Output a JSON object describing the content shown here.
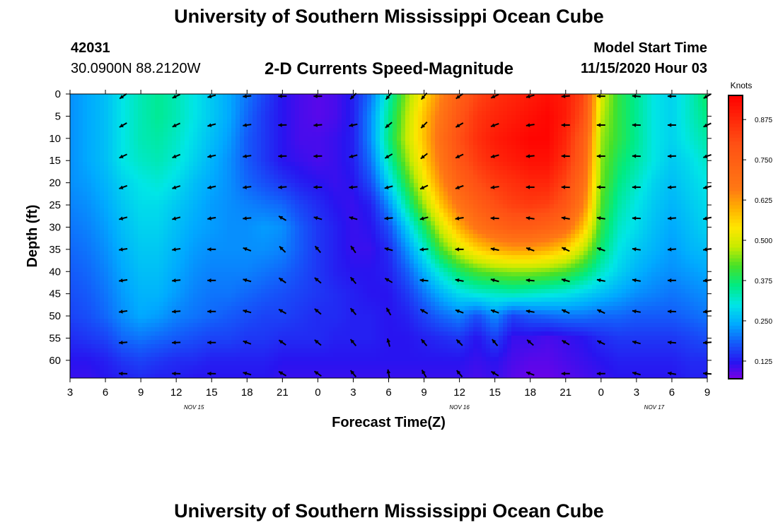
{
  "page": {
    "title_top": "University of Southern Mississippi Ocean Cube",
    "title_bottom": "University of Southern Mississippi Ocean Cube",
    "station_id": "42031",
    "station_coords": "30.0900N 88.2120W",
    "plot_title": "2-D Currents Speed-Magnitude",
    "model_start_label": "Model Start Time",
    "model_start_time": "11/15/2020 Hour 03"
  },
  "chart_data": {
    "type": "heatmap",
    "title": "2-D Currents Speed-Magnitude",
    "xlabel": "Forecast Time(Z)",
    "ylabel": "Depth (ft)",
    "x_ticks": [
      "3",
      "6",
      "9",
      "12",
      "15",
      "18",
      "21",
      "0",
      "3",
      "6",
      "9",
      "12",
      "15",
      "18",
      "21",
      "0",
      "3",
      "6",
      "9"
    ],
    "x_hours": [
      0,
      3,
      6,
      9,
      12,
      15,
      18,
      21,
      24,
      27,
      30,
      33,
      36,
      39,
      42,
      45,
      48,
      51,
      54
    ],
    "date_labels": [
      {
        "text": "NOV 15",
        "hour": 10.5
      },
      {
        "text": "NOV 16",
        "hour": 33
      },
      {
        "text": "NOV 17",
        "hour": 49.5
      }
    ],
    "y_ticks": [
      "0",
      "5",
      "10",
      "15",
      "20",
      "25",
      "30",
      "35",
      "40",
      "45",
      "50",
      "55",
      "60"
    ],
    "ylim": [
      0,
      64
    ],
    "xlim": [
      0,
      54
    ],
    "colorbar": {
      "label": "Knots",
      "ticks": [
        "0.125",
        "0.250",
        "0.375",
        "0.500",
        "0.625",
        "0.750",
        "0.875"
      ],
      "range": [
        0.07,
        0.95
      ]
    },
    "speed_samples": {
      "hours": [
        0,
        1.5,
        3,
        4.5,
        6,
        7.5,
        9,
        10.5,
        12,
        13.5,
        15,
        16.5,
        18,
        19.5,
        21,
        22.5,
        24,
        25.5,
        27,
        28.5,
        30,
        31.5,
        33,
        34.5,
        36,
        37.5,
        39,
        40.5,
        42,
        43.5,
        45,
        46.5,
        48,
        49.5,
        51,
        52.5,
        54
      ],
      "depths": [
        0,
        5,
        10,
        15,
        20,
        25,
        30,
        35,
        40,
        45,
        50,
        55,
        60,
        64
      ],
      "values": [
        [
          0.22,
          0.24,
          0.26,
          0.3,
          0.33,
          0.35,
          0.33,
          0.3,
          0.27,
          0.24,
          0.2,
          0.16,
          0.12,
          0.1,
          0.09,
          0.1,
          0.13,
          0.2,
          0.33,
          0.45,
          0.55,
          0.65,
          0.75,
          0.82,
          0.86,
          0.88,
          0.9,
          0.92,
          0.9,
          0.82,
          0.5,
          0.4,
          0.35,
          0.3,
          0.28,
          0.32,
          0.38
        ],
        [
          0.22,
          0.24,
          0.26,
          0.3,
          0.33,
          0.35,
          0.33,
          0.3,
          0.27,
          0.24,
          0.19,
          0.15,
          0.12,
          0.1,
          0.09,
          0.1,
          0.13,
          0.22,
          0.35,
          0.47,
          0.58,
          0.68,
          0.78,
          0.85,
          0.88,
          0.9,
          0.92,
          0.94,
          0.9,
          0.8,
          0.48,
          0.4,
          0.35,
          0.3,
          0.28,
          0.32,
          0.36
        ],
        [
          0.22,
          0.24,
          0.26,
          0.3,
          0.33,
          0.34,
          0.32,
          0.29,
          0.26,
          0.23,
          0.18,
          0.15,
          0.12,
          0.1,
          0.1,
          0.11,
          0.13,
          0.22,
          0.36,
          0.48,
          0.58,
          0.7,
          0.8,
          0.86,
          0.9,
          0.92,
          0.94,
          0.94,
          0.88,
          0.76,
          0.46,
          0.4,
          0.35,
          0.3,
          0.28,
          0.31,
          0.34
        ],
        [
          0.22,
          0.24,
          0.26,
          0.3,
          0.32,
          0.33,
          0.31,
          0.28,
          0.25,
          0.22,
          0.18,
          0.15,
          0.12,
          0.11,
          0.1,
          0.11,
          0.13,
          0.2,
          0.33,
          0.45,
          0.56,
          0.68,
          0.78,
          0.84,
          0.88,
          0.9,
          0.92,
          0.92,
          0.86,
          0.74,
          0.45,
          0.38,
          0.34,
          0.3,
          0.27,
          0.29,
          0.32
        ],
        [
          0.22,
          0.23,
          0.25,
          0.28,
          0.3,
          0.31,
          0.29,
          0.26,
          0.24,
          0.22,
          0.19,
          0.17,
          0.15,
          0.13,
          0.12,
          0.11,
          0.12,
          0.17,
          0.28,
          0.4,
          0.52,
          0.64,
          0.74,
          0.8,
          0.84,
          0.86,
          0.88,
          0.88,
          0.82,
          0.7,
          0.44,
          0.36,
          0.32,
          0.28,
          0.26,
          0.28,
          0.3
        ],
        [
          0.21,
          0.22,
          0.24,
          0.27,
          0.29,
          0.29,
          0.27,
          0.25,
          0.23,
          0.22,
          0.21,
          0.2,
          0.19,
          0.16,
          0.14,
          0.12,
          0.11,
          0.13,
          0.22,
          0.34,
          0.46,
          0.58,
          0.68,
          0.75,
          0.8,
          0.83,
          0.84,
          0.83,
          0.78,
          0.66,
          0.42,
          0.34,
          0.3,
          0.27,
          0.25,
          0.27,
          0.29
        ],
        [
          0.2,
          0.21,
          0.23,
          0.26,
          0.28,
          0.28,
          0.26,
          0.24,
          0.23,
          0.22,
          0.22,
          0.23,
          0.22,
          0.18,
          0.15,
          0.13,
          0.11,
          0.12,
          0.17,
          0.27,
          0.38,
          0.5,
          0.6,
          0.68,
          0.73,
          0.76,
          0.76,
          0.74,
          0.7,
          0.58,
          0.4,
          0.32,
          0.29,
          0.26,
          0.24,
          0.26,
          0.28
        ],
        [
          0.19,
          0.2,
          0.22,
          0.25,
          0.27,
          0.27,
          0.25,
          0.23,
          0.22,
          0.22,
          0.22,
          0.22,
          0.21,
          0.18,
          0.15,
          0.13,
          0.11,
          0.11,
          0.14,
          0.22,
          0.31,
          0.42,
          0.5,
          0.56,
          0.6,
          0.62,
          0.62,
          0.6,
          0.56,
          0.48,
          0.37,
          0.3,
          0.27,
          0.25,
          0.23,
          0.25,
          0.26
        ],
        [
          0.18,
          0.19,
          0.21,
          0.24,
          0.26,
          0.26,
          0.24,
          0.22,
          0.21,
          0.21,
          0.21,
          0.2,
          0.19,
          0.17,
          0.15,
          0.13,
          0.12,
          0.12,
          0.13,
          0.18,
          0.25,
          0.32,
          0.38,
          0.42,
          0.44,
          0.45,
          0.45,
          0.44,
          0.42,
          0.38,
          0.32,
          0.28,
          0.25,
          0.23,
          0.22,
          0.23,
          0.24
        ],
        [
          0.17,
          0.18,
          0.2,
          0.23,
          0.25,
          0.25,
          0.23,
          0.21,
          0.2,
          0.2,
          0.19,
          0.18,
          0.17,
          0.16,
          0.15,
          0.14,
          0.13,
          0.12,
          0.12,
          0.15,
          0.2,
          0.25,
          0.29,
          0.31,
          0.32,
          0.33,
          0.32,
          0.31,
          0.3,
          0.28,
          0.26,
          0.24,
          0.22,
          0.21,
          0.2,
          0.21,
          0.22
        ],
        [
          0.16,
          0.17,
          0.19,
          0.22,
          0.24,
          0.23,
          0.21,
          0.2,
          0.19,
          0.18,
          0.17,
          0.16,
          0.16,
          0.15,
          0.14,
          0.14,
          0.13,
          0.13,
          0.12,
          0.13,
          0.16,
          0.19,
          0.21,
          0.17,
          0.22,
          0.16,
          0.18,
          0.19,
          0.2,
          0.2,
          0.19,
          0.19,
          0.18,
          0.18,
          0.18,
          0.19,
          0.2
        ],
        [
          0.14,
          0.15,
          0.16,
          0.19,
          0.2,
          0.19,
          0.18,
          0.17,
          0.16,
          0.16,
          0.15,
          0.15,
          0.14,
          0.14,
          0.14,
          0.13,
          0.13,
          0.13,
          0.12,
          0.12,
          0.13,
          0.14,
          0.15,
          0.12,
          0.16,
          0.11,
          0.11,
          0.1,
          0.11,
          0.12,
          0.14,
          0.15,
          0.15,
          0.15,
          0.15,
          0.16,
          0.17
        ],
        [
          0.12,
          0.12,
          0.13,
          0.15,
          0.16,
          0.15,
          0.14,
          0.14,
          0.13,
          0.13,
          0.13,
          0.13,
          0.12,
          0.12,
          0.12,
          0.12,
          0.12,
          0.12,
          0.12,
          0.12,
          0.12,
          0.12,
          0.12,
          0.11,
          0.12,
          0.1,
          0.09,
          0.09,
          0.1,
          0.11,
          0.12,
          0.13,
          0.13,
          0.13,
          0.13,
          0.14,
          0.14
        ],
        [
          0.11,
          0.11,
          0.12,
          0.13,
          0.14,
          0.13,
          0.13,
          0.12,
          0.12,
          0.12,
          0.12,
          0.12,
          0.11,
          0.11,
          0.11,
          0.11,
          0.11,
          0.11,
          0.11,
          0.11,
          0.11,
          0.11,
          0.11,
          0.1,
          0.11,
          0.09,
          0.08,
          0.08,
          0.09,
          0.1,
          0.11,
          0.12,
          0.12,
          0.12,
          0.12,
          0.13,
          0.13
        ]
      ]
    },
    "vectors": {
      "hours": [
        4.5,
        9,
        12,
        15,
        18,
        21,
        24,
        27,
        30,
        33,
        36,
        39,
        42,
        45,
        48,
        51,
        54
      ],
      "depths": [
        0.5,
        7,
        14,
        21,
        28,
        35,
        42,
        49,
        56,
        63
      ],
      "directions_deg_cw_from_north": [
        [
          235,
          245,
          255,
          265,
          270,
          270,
          225,
          220,
          220,
          235,
          245,
          255,
          265,
          270,
          275,
          270,
          240
        ],
        [
          240,
          245,
          255,
          262,
          268,
          265,
          258,
          230,
          225,
          240,
          250,
          262,
          270,
          270,
          272,
          270,
          245
        ],
        [
          245,
          248,
          258,
          262,
          268,
          268,
          255,
          240,
          232,
          245,
          255,
          265,
          272,
          270,
          272,
          268,
          250
        ],
        [
          250,
          252,
          258,
          263,
          265,
          270,
          265,
          255,
          245,
          250,
          262,
          270,
          272,
          272,
          270,
          266,
          255
        ],
        [
          255,
          255,
          260,
          265,
          300,
          285,
          285,
          265,
          255,
          262,
          272,
          278,
          280,
          278,
          272,
          265,
          258
        ],
        [
          262,
          262,
          270,
          290,
          315,
          320,
          325,
          285,
          265,
          270,
          282,
          290,
          295,
          290,
          278,
          265,
          262
        ],
        [
          262,
          265,
          270,
          285,
          305,
          310,
          320,
          300,
          275,
          280,
          285,
          275,
          285,
          280,
          280,
          270,
          262
        ],
        [
          262,
          265,
          270,
          285,
          300,
          310,
          320,
          330,
          300,
          290,
          290,
          280,
          295,
          295,
          280,
          272,
          262
        ],
        [
          265,
          268,
          270,
          290,
          305,
          310,
          320,
          345,
          320,
          315,
          320,
          310,
          300,
          295,
          285,
          275,
          265
        ],
        [
          272,
          272,
          272,
          285,
          300,
          305,
          320,
          350,
          330,
          320,
          300,
          290,
          270,
          270,
          285,
          280,
          275
        ]
      ]
    }
  }
}
